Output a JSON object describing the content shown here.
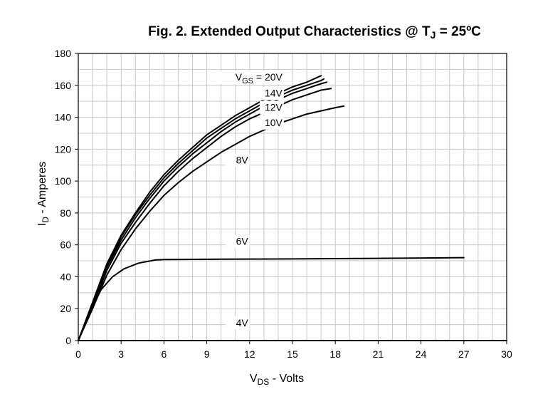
{
  "chart_data": {
    "type": "line",
    "title": "Fig. 2. Extended Output Characteristics @ T",
    "title_sub": "J",
    "title_tail": " = 25ºC",
    "xlabel_main": "V",
    "xlabel_sub": "DS",
    "xlabel_tail": " - Volts",
    "ylabel_main": "I",
    "ylabel_sub": "D",
    "ylabel_tail": " - Amperes",
    "xlim": [
      0,
      30
    ],
    "ylim": [
      0,
      180
    ],
    "xticks": [
      0,
      3,
      6,
      9,
      12,
      15,
      18,
      21,
      24,
      27,
      30
    ],
    "yticks": [
      0,
      20,
      40,
      60,
      80,
      100,
      120,
      140,
      160,
      180
    ],
    "grid": true,
    "legend_prefix_main": "V",
    "legend_prefix_sub": "GS",
    "legend_prefix_tail": " = ",
    "series": [
      {
        "name": "20V",
        "label_x": 12.9,
        "label_y": 163,
        "x": [
          0,
          1,
          2,
          3,
          4,
          5,
          6,
          7,
          8,
          9,
          10,
          11,
          12,
          13,
          14,
          15,
          16,
          17
        ],
        "y": [
          0,
          24,
          48,
          66,
          80,
          93,
          104,
          113,
          121,
          129,
          135,
          141,
          146,
          151,
          155,
          159,
          162,
          166
        ]
      },
      {
        "name": "14V",
        "label_x": 12.9,
        "label_y": 153,
        "x": [
          0,
          1,
          2,
          3,
          4,
          5,
          6,
          7,
          8,
          9,
          10,
          11,
          12,
          13,
          14,
          15,
          16,
          17,
          17.2
        ],
        "y": [
          0,
          23,
          47,
          65,
          79,
          91,
          102,
          111,
          119,
          127,
          133,
          139,
          144,
          149,
          153,
          157,
          160,
          163,
          164
        ]
      },
      {
        "name": "12V",
        "label_x": 12.9,
        "label_y": 144,
        "x": [
          0,
          1,
          2,
          3,
          4,
          5,
          6,
          7,
          8,
          9,
          10,
          11,
          12,
          13,
          14,
          15,
          16,
          17,
          17.4
        ],
        "y": [
          0,
          22,
          46,
          63,
          77,
          89,
          100,
          109,
          117,
          124,
          131,
          137,
          142,
          147,
          151,
          155,
          158,
          161,
          162
        ]
      },
      {
        "name": "10V",
        "label_x": 12.9,
        "label_y": 134.5,
        "x": [
          0,
          1,
          2,
          3,
          4,
          5,
          6,
          7,
          8,
          9,
          10,
          11,
          12,
          13,
          14,
          15,
          16,
          17,
          17.7
        ],
        "y": [
          0,
          21,
          44,
          61,
          74,
          86,
          97,
          106,
          114,
          121,
          128,
          134,
          139,
          143,
          147,
          151,
          154,
          157,
          158
        ]
      },
      {
        "name": "8V",
        "label_x": 10.5,
        "label_y": 111,
        "x": [
          0,
          1,
          2,
          3,
          4,
          5,
          6,
          7,
          8,
          9,
          10,
          11,
          12,
          13,
          14,
          15,
          16,
          17,
          18,
          18.6
        ],
        "y": [
          0,
          20,
          41,
          57,
          70,
          81,
          91,
          99,
          106,
          112,
          118,
          123,
          128,
          132,
          136,
          139,
          142,
          144,
          146,
          147
        ]
      },
      {
        "name": "6V",
        "label_x": 10.5,
        "label_y": 60,
        "x": [
          0,
          0.8,
          1.6,
          2.4,
          3.2,
          4.2,
          5.4,
          6,
          10,
          15,
          20,
          25,
          27
        ],
        "y": [
          0,
          18,
          32,
          40,
          45,
          48.5,
          50.5,
          50.8,
          51,
          51.2,
          51.5,
          51.8,
          52
        ]
      },
      {
        "name": "4V",
        "label_x": 10.5,
        "label_y": 9,
        "x": [
          0,
          30
        ],
        "y": [
          0,
          0
        ]
      }
    ]
  }
}
